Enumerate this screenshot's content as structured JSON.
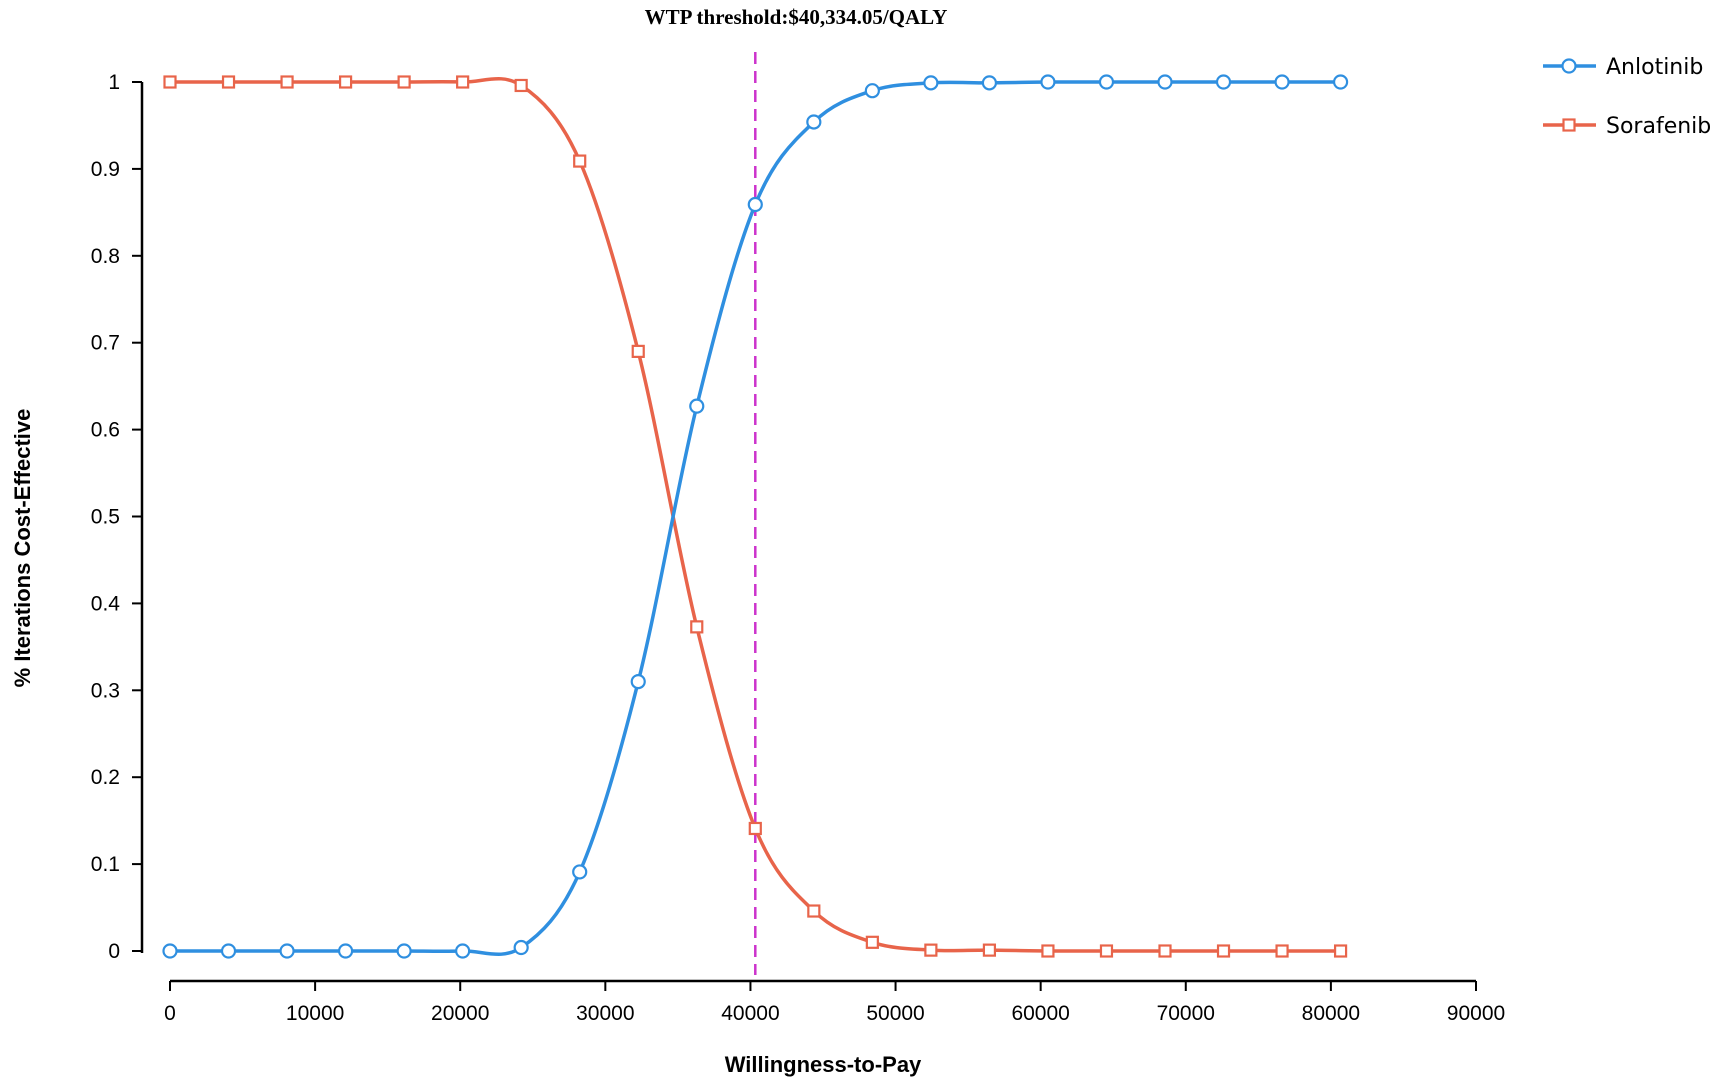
{
  "chart_data": {
    "type": "line",
    "title": "WTP  threshold:$40,334.05/QALY",
    "xlabel": "Willingness-to-Pay",
    "ylabel": "% Iterations Cost-Effective",
    "xlim": [
      0,
      90000
    ],
    "ylim": [
      0,
      1
    ],
    "xticks": [
      0,
      10000,
      20000,
      30000,
      40000,
      50000,
      60000,
      70000,
      80000,
      90000
    ],
    "yticks": [
      0,
      0.1,
      0.2,
      0.3,
      0.4,
      0.5,
      0.6,
      0.7,
      0.8,
      0.9,
      1
    ],
    "threshold": {
      "x": 40334.05,
      "color": "#cc33cc"
    },
    "x": [
      0,
      4033,
      8067,
      12100,
      16134,
      20167,
      24200,
      28234,
      32267,
      36301,
      40334,
      44368,
      48401,
      52434,
      56468,
      60501,
      64535,
      68568,
      72601,
      76635,
      80668
    ],
    "series": [
      {
        "name": "Anlotinib",
        "marker": "circle",
        "color": "#2f8fe0",
        "values": [
          0,
          0,
          0,
          0,
          0,
          0,
          0.004,
          0.091,
          0.31,
          0.627,
          0.859,
          0.954,
          0.99,
          0.999,
          0.999,
          1,
          1,
          1,
          1,
          1,
          1
        ]
      },
      {
        "name": "Sorafenib",
        "marker": "square",
        "color": "#e8644a",
        "values": [
          1,
          1,
          1,
          1,
          1,
          1,
          0.996,
          0.909,
          0.69,
          0.373,
          0.141,
          0.046,
          0.01,
          0.001,
          0.001,
          0,
          0,
          0,
          0,
          0,
          0
        ]
      }
    ],
    "legend": "top-right",
    "grid": false
  }
}
